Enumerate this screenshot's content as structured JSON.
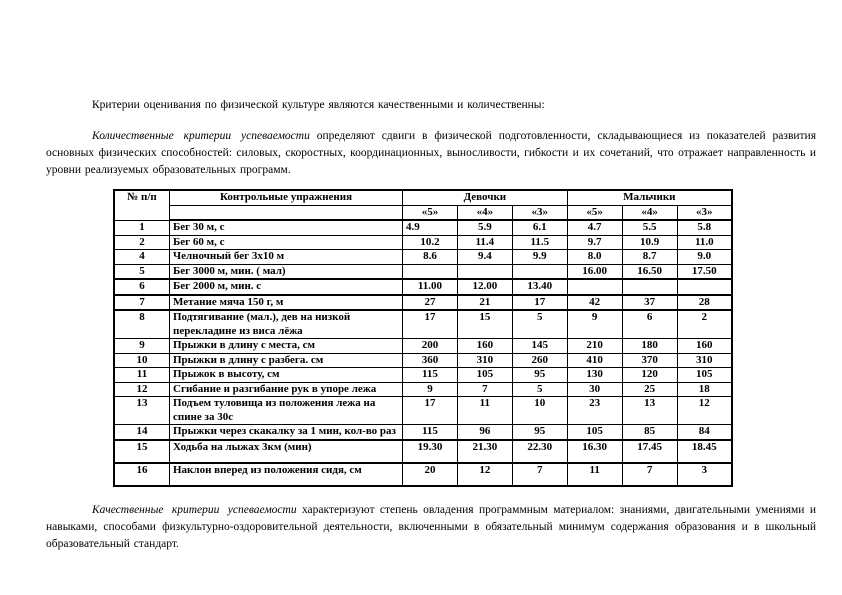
{
  "page": {
    "paragraph1": "Критерии оценивания по физической культуре являются качественными и количественны:",
    "paragraph2": {
      "lead": "Количественные критерии успеваемости",
      "rest": " определяют сдвиги в физической подготовленности, складывающиеся из показателей развития основных физических способностей: силовых, скоростных, координационных, выносливости, гибкости и их сочетаний, что отражает направленность и уровни реализуемых образовательных программ."
    },
    "paragraph3": {
      "lead": "Качественные критерии успеваемости",
      "rest": " характеризуют степень овладения программным материалом: знаниями, двигательными умениями и навыками, способами физкультурно-оздоровительной деятельности, включенными в обязательный минимум содержания образования и в школьный образовательный стандарт."
    }
  },
  "table": {
    "headers": {
      "number": "№ п/п",
      "exercises": "Контрольные упражнения",
      "girls": "Девочки",
      "boys": "Мальчики",
      "grades": [
        "«5»",
        "«4»",
        "«3»"
      ]
    },
    "rows": [
      {
        "no": "1",
        "exercise": "Бег 30 м, с",
        "values": [
          "4.9",
          "5.9",
          "6.1",
          "4.7",
          "5.5",
          "5.8"
        ],
        "first_value_left": true
      },
      {
        "no": "2",
        "exercise": "Бег 60 м, с",
        "values": [
          "10.2",
          "11.4",
          "11.5",
          "9.7",
          "10.9",
          "11.0"
        ]
      },
      {
        "no": "4",
        "exercise": "Челночный бег 3х10 м",
        "values": [
          "8.6",
          "9.4",
          "9.9",
          "8.0",
          "8.7",
          "9.0"
        ]
      },
      {
        "no": "5",
        "exercise": "Бег 3000 м, мин. ( мал)",
        "values": [
          "",
          "",
          "",
          "16.00",
          "16.50",
          "17.50"
        ],
        "thick_bottom": true
      },
      {
        "no": "6",
        "exercise": "Бег 2000 м, мин. с",
        "values": [
          "11.00",
          "12.00",
          "13.40",
          "",
          "",
          ""
        ],
        "thick_bottom": true
      },
      {
        "no": "7",
        "exercise": "Метание мяча 150 г, м",
        "values": [
          "27",
          "21",
          "17",
          "42",
          "37",
          "28"
        ],
        "thick_bottom": true
      },
      {
        "no": "8",
        "exercise": "Подтягивание (мал.), дев на низкой перекладине из виса лёжа",
        "values": [
          "17",
          "15",
          "5",
          "9",
          "6",
          "2"
        ]
      },
      {
        "no": "9",
        "exercise": "Прыжки в длину с места, см",
        "values": [
          "200",
          "160",
          "145",
          "210",
          "180",
          "160"
        ]
      },
      {
        "no": "10",
        "exercise": "Прыжки в длину с разбега. см",
        "values": [
          "360",
          "310",
          "260",
          "410",
          "370",
          "310"
        ]
      },
      {
        "no": "11",
        "exercise": "Прыжок в высоту,  см",
        "values": [
          "115",
          "105",
          "95",
          "130",
          "120",
          "105"
        ]
      },
      {
        "no": "12",
        "exercise": "Сгибание и разгибание рук в упоре лежа",
        "values": [
          "9",
          "7",
          "5",
          "30",
          "25",
          "18"
        ]
      },
      {
        "no": "13",
        "exercise": "Подъем туловища  из положения лежа на спине за 30с",
        "values": [
          "17",
          "11",
          "10",
          "23",
          "13",
          "12"
        ]
      },
      {
        "no": "14",
        "exercise": "Прыжки через скакалку за 1 мин, кол-во раз",
        "values": [
          "115",
          "96",
          "95",
          "105",
          "85",
          "84"
        ],
        "thick_bottom": true
      },
      {
        "no": "15",
        "exercise": "Ходьба на лыжах 3км (мин)",
        "values": [
          "19.30",
          "21.30",
          "22.30",
          "16.30",
          "17.45",
          "18.45"
        ],
        "thick_bottom": true,
        "tall": true
      },
      {
        "no": "16",
        "exercise": "Наклон вперед из положения сидя, см",
        "values": [
          "20",
          "12",
          "7",
          "11",
          "7",
          "3"
        ],
        "tall": true
      }
    ]
  }
}
